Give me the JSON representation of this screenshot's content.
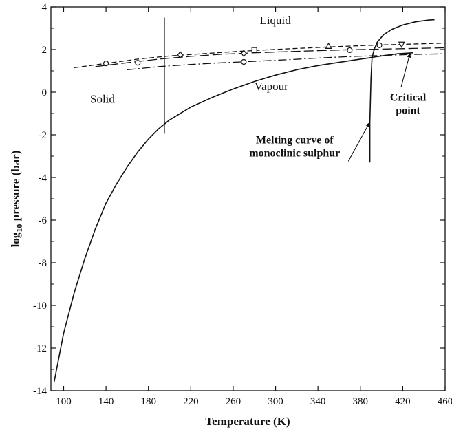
{
  "chart_data": {
    "type": "line",
    "xlabel": "Temperature (K)",
    "ylabel_prefix": "log",
    "ylabel_sub": "10",
    "ylabel_suffix": " pressure (bar)",
    "xlim": [
      88,
      460
    ],
    "ylim": [
      -14,
      4
    ],
    "xticks": [
      100,
      140,
      180,
      220,
      260,
      300,
      340,
      380,
      420,
      460
    ],
    "yticks": [
      -14,
      -12,
      -10,
      -8,
      -6,
      -4,
      -2,
      0,
      2,
      4
    ],
    "grid": false,
    "legend": "none",
    "region_labels": [
      {
        "text": "Liquid",
        "x": 285,
        "y": 3.2
      },
      {
        "text": "Solid",
        "x": 125,
        "y": -0.5
      },
      {
        "text": "Vapour",
        "x": 280,
        "y": 0.1
      }
    ],
    "annotations": [
      {
        "lines": [
          "Melting curve of",
          "monoclinic sulphur"
        ],
        "x": 318,
        "y": -2.4,
        "arrow_to": [
          389,
          -1.4
        ]
      },
      {
        "lines": [
          "Critical",
          "point"
        ],
        "x": 425,
        "y": -0.4,
        "arrow_to": [
          427,
          1.85
        ]
      }
    ],
    "series": [
      {
        "style": "solid",
        "x": [
          91,
          100,
          110,
          120,
          130,
          140,
          150,
          160,
          170,
          180,
          190,
          200,
          220,
          240,
          260,
          280,
          300,
          320,
          340,
          360,
          380,
          390
        ],
        "y": [
          -13.6,
          -11.3,
          -9.4,
          -7.8,
          -6.4,
          -5.2,
          -4.3,
          -3.5,
          -2.8,
          -2.2,
          -1.7,
          -1.3,
          -0.7,
          -0.25,
          0.15,
          0.5,
          0.8,
          1.05,
          1.25,
          1.4,
          1.55,
          1.62
        ]
      },
      {
        "style": "solid",
        "x": [
          195,
          195
        ],
        "y": [
          -1.95,
          3.5
        ]
      },
      {
        "style": "solid",
        "x": [
          389,
          389,
          390,
          391,
          393,
          396,
          402,
          410,
          420,
          432,
          444,
          450
        ],
        "y": [
          -3.3,
          -1.4,
          0.6,
          1.6,
          2.0,
          2.35,
          2.7,
          2.95,
          3.15,
          3.3,
          3.38,
          3.4
        ]
      },
      {
        "style": "solid",
        "x": [
          389,
          400,
          415,
          430
        ],
        "y": [
          1.62,
          1.7,
          1.8,
          1.85
        ]
      },
      {
        "style": "dashed",
        "x": [
          110,
          140,
          170,
          200,
          230,
          260,
          290,
          320,
          350,
          380,
          410,
          460
        ],
        "y": [
          1.15,
          1.35,
          1.55,
          1.7,
          1.8,
          1.9,
          1.98,
          2.05,
          2.12,
          2.18,
          2.23,
          2.3
        ]
      },
      {
        "style": "longdash",
        "x": [
          130,
          160,
          190,
          220,
          250,
          280,
          310,
          340,
          370,
          400,
          430,
          460
        ],
        "y": [
          1.2,
          1.38,
          1.55,
          1.68,
          1.78,
          1.85,
          1.9,
          1.95,
          1.99,
          2.02,
          2.05,
          2.08
        ]
      },
      {
        "style": "dashdot",
        "x": [
          160,
          190,
          220,
          250,
          280,
          310,
          340,
          370,
          400,
          430,
          460
        ],
        "y": [
          1.05,
          1.2,
          1.3,
          1.38,
          1.45,
          1.52,
          1.6,
          1.67,
          1.72,
          1.77,
          1.8
        ]
      }
    ],
    "markers": [
      {
        "shape": "circle",
        "x": 140,
        "y": 1.35
      },
      {
        "shape": "circle",
        "x": 170,
        "y": 1.38
      },
      {
        "shape": "diamond",
        "x": 210,
        "y": 1.75
      },
      {
        "shape": "diamond",
        "x": 270,
        "y": 1.82
      },
      {
        "shape": "circle",
        "x": 270,
        "y": 1.42
      },
      {
        "shape": "square",
        "x": 280,
        "y": 1.98
      },
      {
        "shape": "triangle",
        "x": 350,
        "y": 2.15
      },
      {
        "shape": "circle",
        "x": 370,
        "y": 1.97
      },
      {
        "shape": "circle",
        "x": 398,
        "y": 2.2
      },
      {
        "shape": "triangle-down",
        "x": 419,
        "y": 2.25
      }
    ]
  }
}
